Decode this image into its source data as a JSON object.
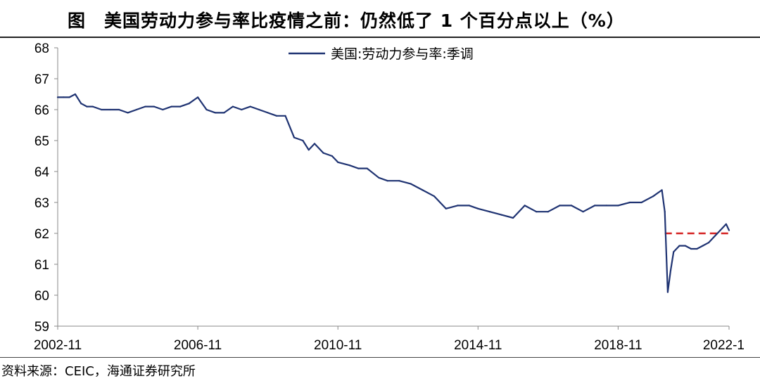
{
  "title": "图　美国劳动力参与率比疫情之前：仍然低了 1 个百分点以上（%）",
  "source": "资料来源：CEIC，海通证券研究所",
  "colors": {
    "series": "#1f3372",
    "reference": "#d42020"
  },
  "chart_data": {
    "type": "line",
    "title": "图　美国劳动力参与率比疫情之前：仍然低了 1 个百分点以上（%）",
    "xlabel": "",
    "ylabel": "",
    "ylim": [
      59,
      68
    ],
    "yticks": [
      59,
      60,
      61,
      62,
      63,
      64,
      65,
      66,
      67,
      68
    ],
    "xlim": [
      "2002-11",
      "2022-1"
    ],
    "xticks": [
      "2002-11",
      "2006-11",
      "2010-11",
      "2014-11",
      "2018-11",
      "2022-1"
    ],
    "grid": false,
    "legend": "top-center",
    "series": [
      {
        "name": "美国:劳动力参与率:季调",
        "x": [
          "2002-11",
          "2003-1",
          "2003-3",
          "2003-5",
          "2003-7",
          "2003-9",
          "2003-11",
          "2004-2",
          "2004-5",
          "2004-8",
          "2004-11",
          "2005-2",
          "2005-5",
          "2005-8",
          "2005-11",
          "2006-2",
          "2006-5",
          "2006-8",
          "2006-11",
          "2007-2",
          "2007-5",
          "2007-8",
          "2007-11",
          "2008-2",
          "2008-5",
          "2008-8",
          "2008-11",
          "2009-2",
          "2009-5",
          "2009-8",
          "2009-11",
          "2010-1",
          "2010-3",
          "2010-6",
          "2010-9",
          "2010-11",
          "2011-3",
          "2011-6",
          "2011-9",
          "2012-1",
          "2012-4",
          "2012-8",
          "2012-12",
          "2013-4",
          "2013-8",
          "2013-12",
          "2014-4",
          "2014-8",
          "2014-11",
          "2015-3",
          "2015-7",
          "2015-11",
          "2016-3",
          "2016-7",
          "2016-11",
          "2017-3",
          "2017-7",
          "2017-11",
          "2018-3",
          "2018-7",
          "2018-11",
          "2019-3",
          "2019-7",
          "2019-11",
          "2020-2",
          "2020-3",
          "2020-4",
          "2020-5",
          "2020-6",
          "2020-8",
          "2020-10",
          "2020-12",
          "2021-2",
          "2021-4",
          "2021-6",
          "2021-8",
          "2021-10",
          "2021-12",
          "2022-1"
        ],
        "values": [
          66.4,
          66.4,
          66.4,
          66.5,
          66.2,
          66.1,
          66.1,
          66.0,
          66.0,
          66.0,
          65.9,
          66.0,
          66.1,
          66.1,
          66.0,
          66.1,
          66.1,
          66.2,
          66.4,
          66.0,
          65.9,
          65.9,
          66.1,
          66.0,
          66.1,
          66.0,
          65.9,
          65.8,
          65.8,
          65.1,
          65.0,
          64.7,
          64.9,
          64.6,
          64.5,
          64.3,
          64.2,
          64.1,
          64.1,
          63.8,
          63.7,
          63.7,
          63.6,
          63.4,
          63.2,
          62.8,
          62.9,
          62.9,
          62.8,
          62.7,
          62.6,
          62.5,
          62.9,
          62.7,
          62.7,
          62.9,
          62.9,
          62.7,
          62.9,
          62.9,
          62.9,
          63.0,
          63.0,
          63.2,
          63.4,
          62.7,
          60.1,
          60.8,
          61.4,
          61.6,
          61.6,
          61.5,
          61.5,
          61.6,
          61.7,
          61.9,
          62.1,
          62.3,
          62.1
        ]
      },
      {
        "name": "",
        "x": [
          "2020-3",
          "2022-1"
        ],
        "values": [
          62.0,
          62.0
        ]
      }
    ]
  }
}
